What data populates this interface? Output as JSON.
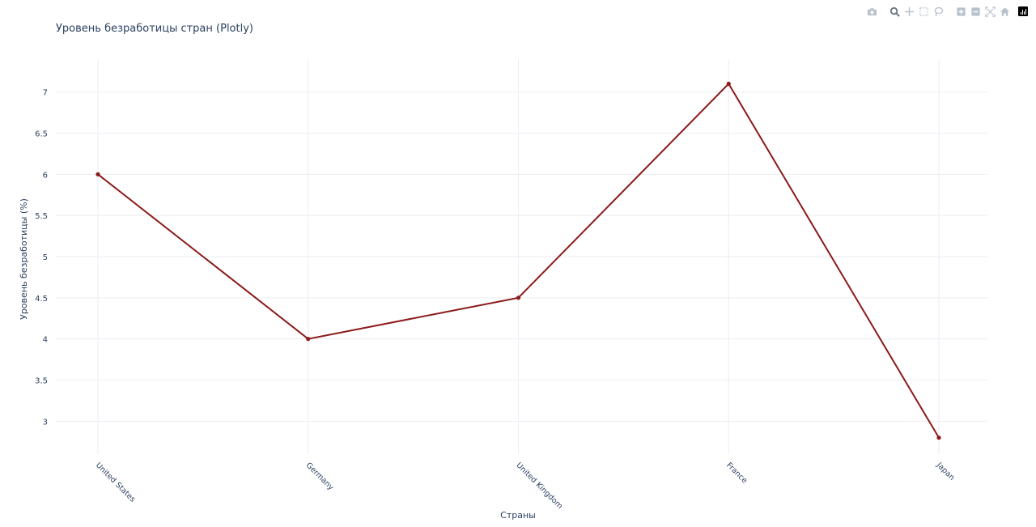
{
  "chart_data": {
    "type": "line",
    "title": "Уровень безработицы стран (Plotly)",
    "xlabel": "Страны",
    "ylabel": "Уровень безработицы (%)",
    "categories": [
      "United States",
      "Germany",
      "United Kingdom",
      "France",
      "Japan"
    ],
    "series": [
      {
        "values": [
          6.0,
          4.0,
          4.5,
          7.1,
          2.8
        ],
        "color": "#8b1a1a"
      }
    ],
    "yticks": [
      "3",
      "3.5",
      "4",
      "4.5",
      "5",
      "5.5",
      "6",
      "6.5",
      "7"
    ],
    "ylim": [
      2.6,
      7.4
    ],
    "grid": true,
    "x_tick_rotation_deg": 45
  },
  "modebar": {
    "icons": [
      "camera-icon",
      "zoom-icon",
      "pan-icon",
      "box-select-icon",
      "lasso-icon",
      "zoom-in-icon",
      "zoom-out-icon",
      "autoscale-icon",
      "home-icon",
      "plotly-logo-icon"
    ]
  },
  "colors": {
    "line": "#8b1a1a",
    "grid": "#ebeef3",
    "text": "#2a3f5f",
    "modebar_icon": "#b9c1cc"
  }
}
